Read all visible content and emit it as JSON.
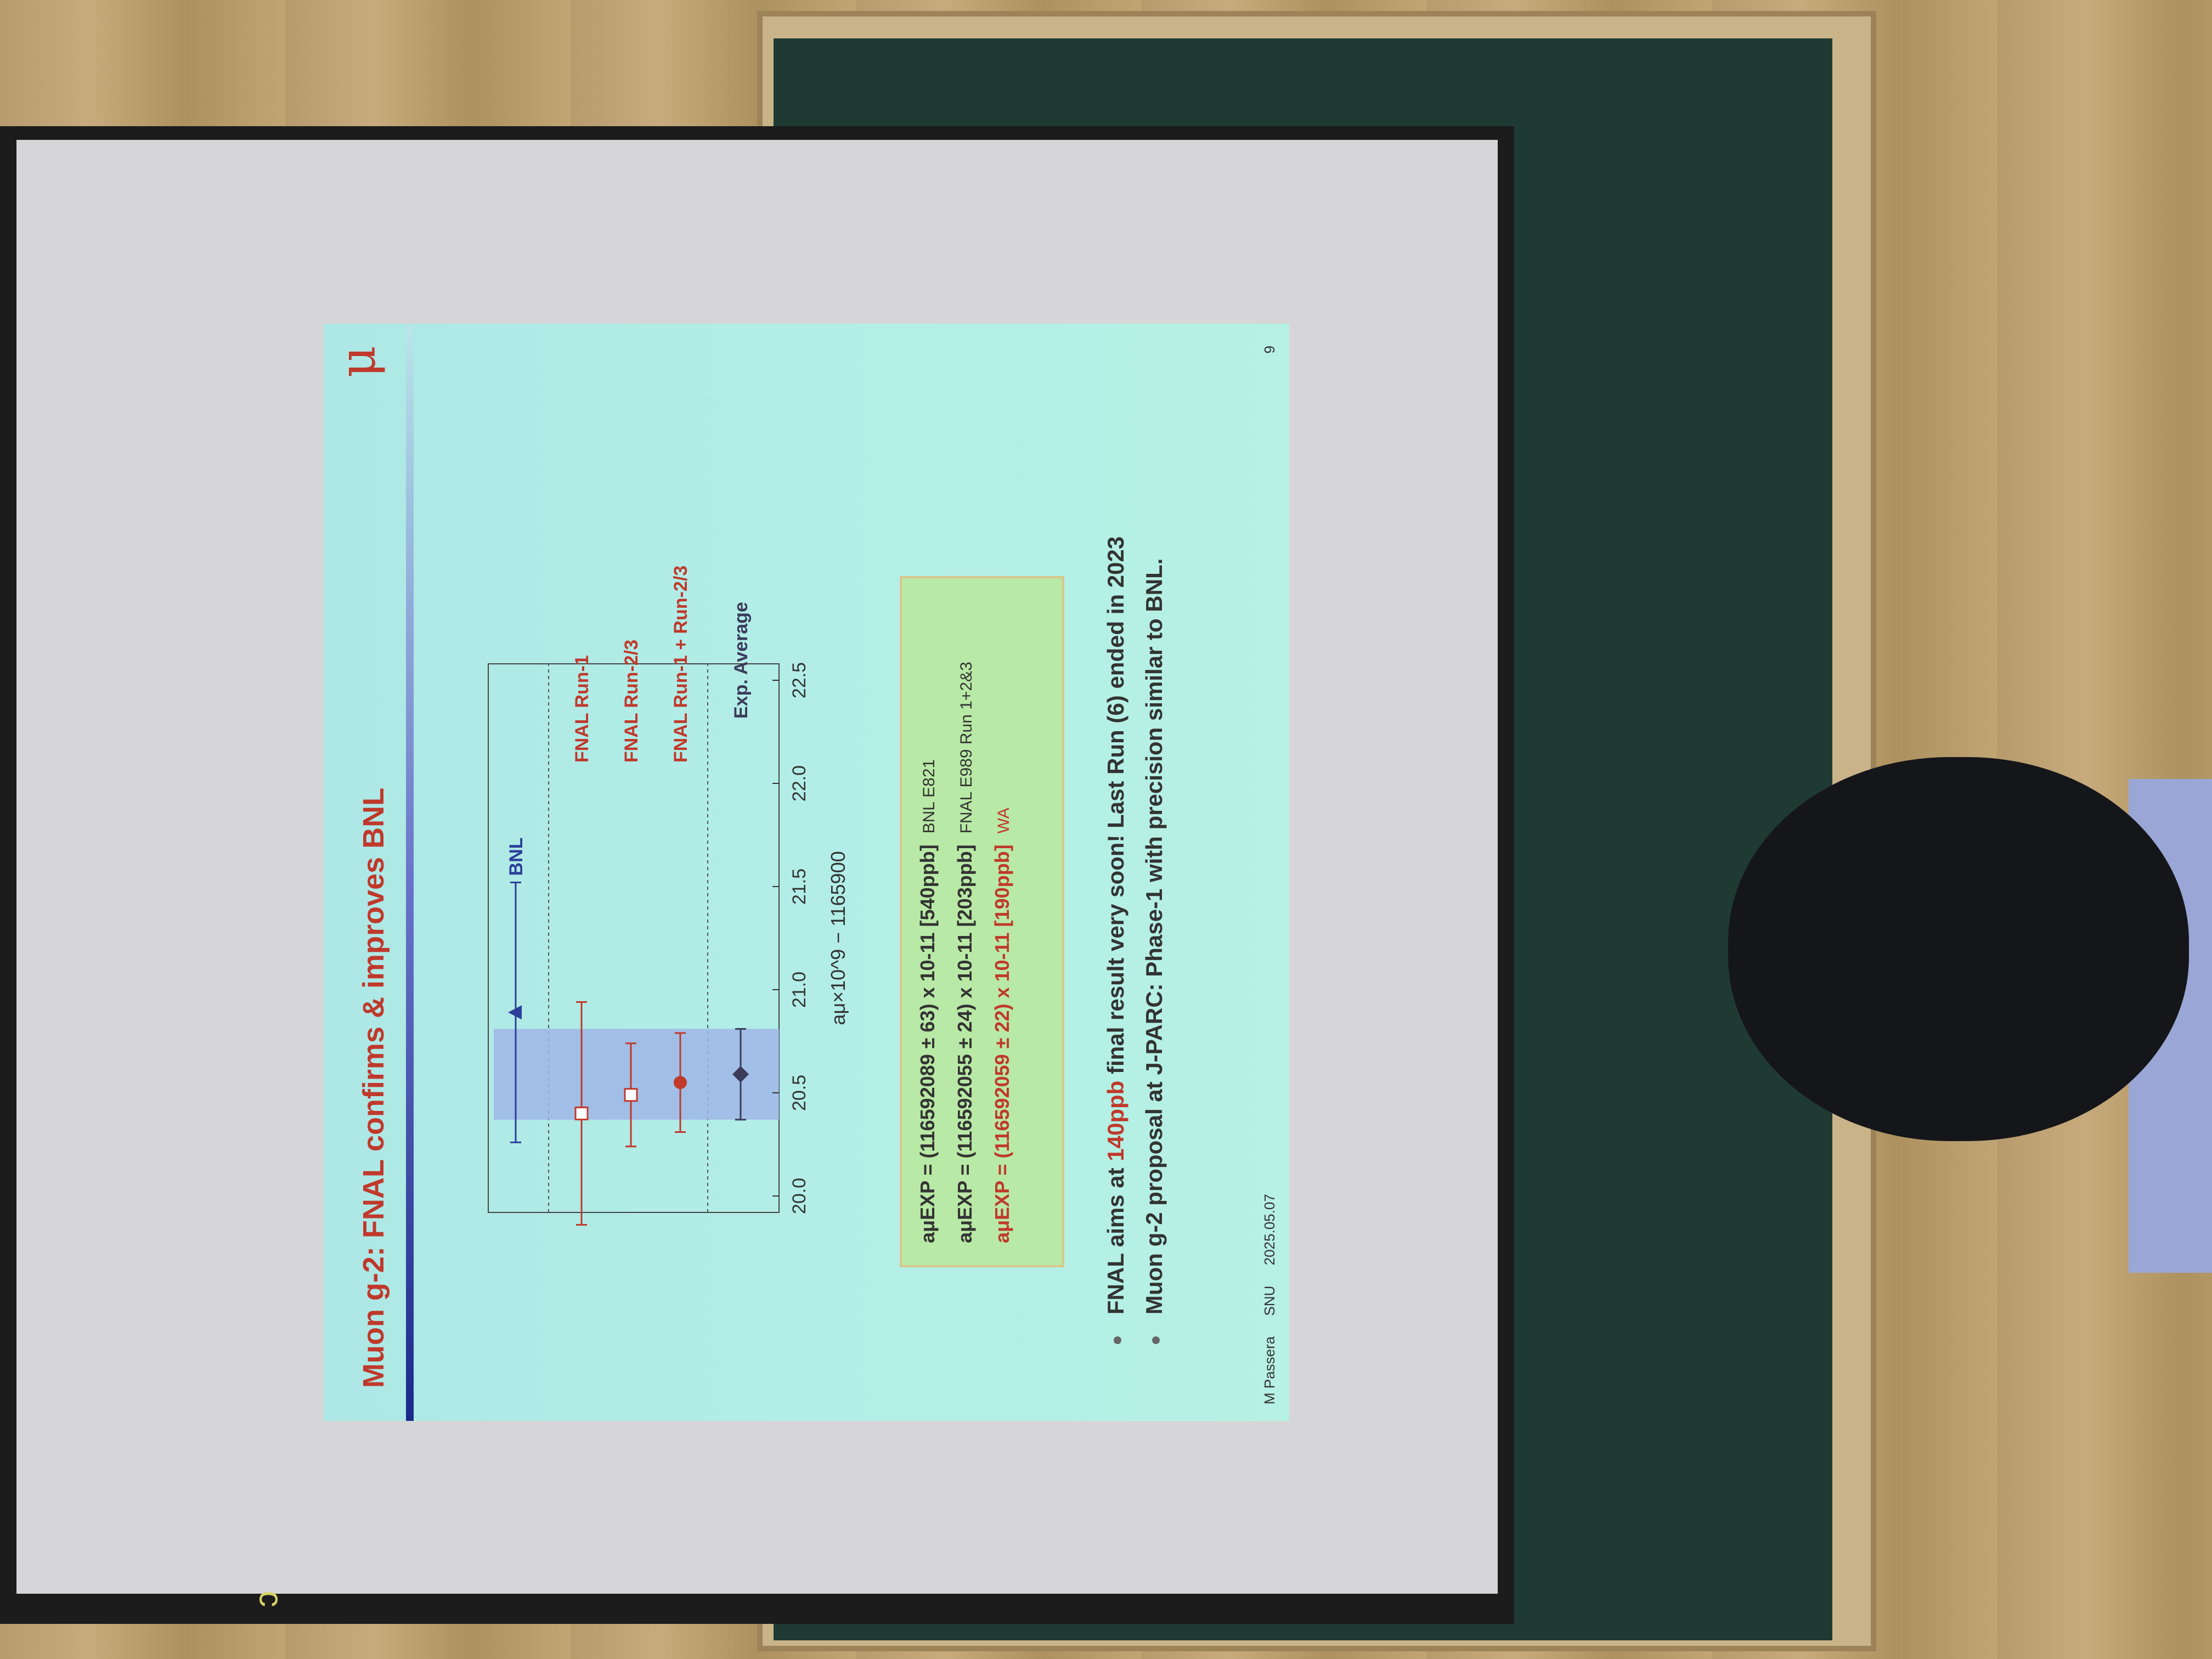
{
  "slide": {
    "title": "Muon g-2: FNAL confirms & improves BNL",
    "logo": "μ",
    "formulas": [
      {
        "text": "aμEXP = (116592089 ± 63) x 10-11 [540ppb]",
        "tag": "BNL E821",
        "highlight": false
      },
      {
        "text": "aμEXP = (116592055 ± 24) x 10-11 [203ppb]",
        "tag": "FNAL E989 Run 1+2&3",
        "highlight": false
      },
      {
        "text": "aμEXP = (116592059 ± 22) x 10-11 [190ppb]",
        "tag": "WA",
        "highlight": true
      }
    ],
    "bullets": [
      {
        "before": "FNAL aims at ",
        "highlight": "140ppb",
        "after": " final result very soon! Last Run (6) ended in 2023"
      },
      {
        "before": "Muon g-2 proposal at J-PARC: Phase-1 with precision similar to BNL.",
        "highlight": "",
        "after": ""
      }
    ],
    "footer": {
      "author": "M Passera",
      "venue": "SNU",
      "date": "2025.05.07"
    },
    "page_number": "9"
  },
  "chart_data": {
    "type": "scatter",
    "xlabel": "aμ×10^9 − 1165900",
    "xlim": [
      20.0,
      22.5
    ],
    "xticks": [
      "20.0",
      "20.5",
      "21.0",
      "21.5",
      "22.0",
      "22.5"
    ],
    "band": {
      "min": 20.37,
      "max": 20.81,
      "color": "#9fb6e6"
    },
    "series": [
      {
        "name": "BNL",
        "x": 20.89,
        "err": 0.63,
        "marker": "triangle",
        "color": "#2b3f9a",
        "row": 0
      },
      {
        "name": "FNAL Run-1",
        "x": 20.4,
        "err": 0.54,
        "marker": "square-open",
        "color": "#c0392b",
        "row": 1
      },
      {
        "name": "FNAL Run-2/3",
        "x": 20.49,
        "err": 0.25,
        "marker": "square-open",
        "color": "#c0392b",
        "row": 2
      },
      {
        "name": "FNAL Run-1 + Run-2/3",
        "x": 20.55,
        "err": 0.24,
        "marker": "circle",
        "color": "#c0392b",
        "row": 3
      },
      {
        "name": "Exp. Average",
        "x": 20.59,
        "err": 0.22,
        "marker": "diamond",
        "color": "#3b3b5a",
        "row": 4
      }
    ],
    "colors": {
      "bnl": "#2b3f9a",
      "fnal": "#c0392b",
      "average": "#3b3b5a"
    }
  }
}
